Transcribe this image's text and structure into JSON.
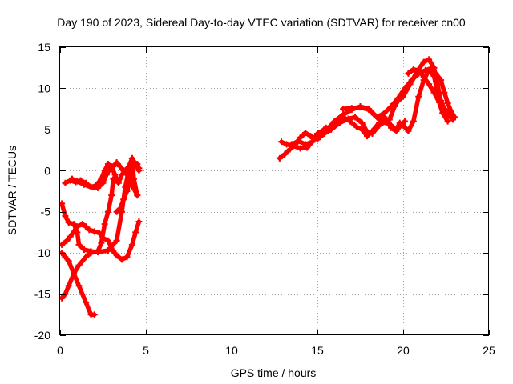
{
  "chart_data": {
    "type": "scatter",
    "title": "Day 190 of 2023, Sidereal Day-to-day VTEC variation (SDTVAR) for receiver cn00",
    "xlabel": "GPS time / hours",
    "ylabel": "SDTVAR / TECUs",
    "xlim": [
      0,
      25
    ],
    "ylim": [
      -20,
      15
    ],
    "xticks": [
      "0",
      "5",
      "10",
      "15",
      "20",
      "25"
    ],
    "yticks": [
      "-20",
      "-15",
      "-10",
      "-5",
      "0",
      "5",
      "10",
      "15"
    ],
    "grid": true,
    "color": "#ff0000",
    "series": [
      {
        "name": "satellite-trace-1",
        "points": [
          [
            0.1,
            -4
          ],
          [
            0.3,
            -5.5
          ],
          [
            0.5,
            -6.3
          ],
          [
            0.8,
            -6.5
          ],
          [
            1.0,
            -7.5
          ],
          [
            1.1,
            -9
          ],
          [
            1.4,
            -9.6
          ],
          [
            1.8,
            -9.8
          ],
          [
            2.2,
            -9.9
          ],
          [
            2.8,
            -9.7
          ],
          [
            3.3,
            -8.5
          ],
          [
            3.6,
            -5
          ],
          [
            3.8,
            -2
          ],
          [
            4.0,
            0
          ],
          [
            4.2,
            1.5
          ],
          [
            4.3,
            -1
          ],
          [
            4.5,
            -3
          ]
        ]
      },
      {
        "name": "satellite-trace-2",
        "points": [
          [
            0.1,
            -10
          ],
          [
            0.3,
            -10.5
          ],
          [
            0.5,
            -11
          ],
          [
            0.8,
            -12.5
          ],
          [
            1.1,
            -14
          ],
          [
            1.5,
            -16
          ],
          [
            1.8,
            -17.5
          ],
          [
            2.0,
            -17.5
          ]
        ]
      },
      {
        "name": "satellite-trace-3",
        "points": [
          [
            0.1,
            -15.5
          ],
          [
            0.3,
            -15
          ],
          [
            0.5,
            -14
          ],
          [
            0.8,
            -12.5
          ],
          [
            1.1,
            -11.5
          ],
          [
            1.5,
            -10.5
          ],
          [
            1.8,
            -10
          ],
          [
            2.2,
            -9.8
          ],
          [
            2.4,
            -8.8
          ],
          [
            2.6,
            -6.5
          ],
          [
            2.8,
            -5
          ],
          [
            3.0,
            -3
          ],
          [
            3.1,
            -1
          ]
        ]
      },
      {
        "name": "satellite-trace-4",
        "points": [
          [
            0.1,
            -9
          ],
          [
            0.4,
            -8.5
          ],
          [
            0.6,
            -8
          ],
          [
            1.0,
            -6.8
          ],
          [
            1.3,
            -6.5
          ],
          [
            1.5,
            -6.8
          ],
          [
            1.7,
            -7.2
          ],
          [
            2.0,
            -7.4
          ],
          [
            2.3,
            -7.6
          ],
          [
            2.5,
            -8.2
          ],
          [
            2.8,
            -8.5
          ],
          [
            3.1,
            -9.8
          ],
          [
            3.3,
            -10.3
          ],
          [
            3.6,
            -10.8
          ],
          [
            3.9,
            -10.5
          ],
          [
            4.2,
            -9
          ],
          [
            4.4,
            -7.5
          ],
          [
            4.6,
            -6.2
          ]
        ]
      },
      {
        "name": "satellite-trace-5",
        "points": [
          [
            0.3,
            -1.5
          ],
          [
            0.6,
            -1.2
          ],
          [
            0.9,
            -1.4
          ],
          [
            1.2,
            -1.2
          ],
          [
            1.5,
            -1.5
          ],
          [
            1.8,
            -2
          ],
          [
            2.1,
            -1.8
          ],
          [
            2.4,
            -1
          ],
          [
            2.6,
            0
          ],
          [
            2.8,
            0.8
          ],
          [
            3.0,
            0.5
          ],
          [
            3.2,
            -0.5
          ],
          [
            3.4,
            -1.5
          ],
          [
            3.6,
            -0.5
          ],
          [
            3.8,
            0
          ],
          [
            4.0,
            0.5
          ],
          [
            4.2,
            1.5
          ],
          [
            4.4,
            0.8
          ],
          [
            4.6,
            0
          ]
        ]
      },
      {
        "name": "satellite-trace-6",
        "points": [
          [
            0.7,
            -1
          ],
          [
            1.0,
            -1.3
          ],
          [
            1.4,
            -1.7
          ],
          [
            1.8,
            -2
          ],
          [
            2.2,
            -2.1
          ],
          [
            2.5,
            -1.5
          ],
          [
            2.7,
            -0.5
          ],
          [
            2.9,
            0.2
          ],
          [
            3.1,
            0.5
          ],
          [
            3.3,
            1
          ],
          [
            3.5,
            0.5
          ],
          [
            3.7,
            0
          ],
          [
            3.9,
            -0.5
          ],
          [
            4.1,
            -1.5
          ],
          [
            4.3,
            -2.2
          ],
          [
            4.5,
            -3
          ]
        ]
      },
      {
        "name": "satellite-trace-7",
        "points": [
          [
            3.3,
            -5
          ],
          [
            3.5,
            -4.6
          ],
          [
            3.7,
            -3.5
          ],
          [
            3.9,
            -2.5
          ],
          [
            4.1,
            -1
          ],
          [
            4.3,
            0.5
          ],
          [
            4.5,
            0.8
          ],
          [
            4.6,
            0.3
          ]
        ]
      },
      {
        "name": "satellite-trace-8",
        "points": [
          [
            12.9,
            3.5
          ],
          [
            13.2,
            3.2
          ],
          [
            13.6,
            3
          ],
          [
            14.0,
            2.7
          ],
          [
            14.4,
            2.8
          ],
          [
            14.7,
            3.5
          ],
          [
            15.0,
            4.5
          ],
          [
            15.4,
            5
          ],
          [
            15.7,
            5.3
          ],
          [
            16.0,
            6
          ],
          [
            16.5,
            6.8
          ],
          [
            17.0,
            7.4
          ],
          [
            17.5,
            7.8
          ],
          [
            18.0,
            7.5
          ],
          [
            18.3,
            6.8
          ],
          [
            18.7,
            6
          ],
          [
            19.0,
            5.8
          ],
          [
            19.2,
            6.2
          ],
          [
            19.5,
            7.8
          ],
          [
            19.7,
            8.5
          ],
          [
            20.0,
            9
          ],
          [
            20.4,
            10.5
          ],
          [
            20.8,
            12
          ],
          [
            21.2,
            13.2
          ],
          [
            21.5,
            13.5
          ],
          [
            21.8,
            12.5
          ],
          [
            22.0,
            10.5
          ],
          [
            22.2,
            8.5
          ],
          [
            22.4,
            7.5
          ],
          [
            22.7,
            7
          ],
          [
            22.9,
            6.5
          ]
        ]
      },
      {
        "name": "satellite-trace-9",
        "points": [
          [
            12.8,
            1.5
          ],
          [
            13.1,
            2
          ],
          [
            13.4,
            2.6
          ],
          [
            13.7,
            3.2
          ],
          [
            14.0,
            4
          ],
          [
            14.3,
            4.6
          ],
          [
            14.6,
            4.2
          ],
          [
            15.0,
            3.8
          ],
          [
            15.4,
            4.5
          ],
          [
            15.8,
            5
          ],
          [
            16.3,
            5.8
          ],
          [
            16.8,
            6.3
          ],
          [
            17.2,
            6.5
          ],
          [
            17.6,
            5.8
          ],
          [
            17.9,
            4.7
          ],
          [
            18.2,
            4.5
          ],
          [
            18.6,
            5.5
          ],
          [
            19.0,
            6
          ],
          [
            19.3,
            5.5
          ],
          [
            19.6,
            5
          ],
          [
            19.8,
            5.8
          ],
          [
            20.0,
            5.5
          ],
          [
            20.3,
            4.8
          ],
          [
            20.6,
            6
          ],
          [
            20.9,
            9
          ],
          [
            21.2,
            11
          ],
          [
            21.5,
            12.2
          ],
          [
            21.8,
            11.5
          ],
          [
            22.0,
            9.5
          ],
          [
            22.3,
            7.8
          ],
          [
            22.6,
            6.8
          ],
          [
            22.9,
            6.2
          ]
        ]
      },
      {
        "name": "satellite-trace-10",
        "points": [
          [
            13.5,
            3.2
          ],
          [
            13.9,
            3.6
          ],
          [
            14.3,
            3.2
          ],
          [
            14.7,
            3.5
          ],
          [
            15.1,
            4.5
          ],
          [
            15.5,
            5.2
          ],
          [
            16.0,
            5.4
          ],
          [
            16.5,
            6.5
          ],
          [
            16.9,
            6
          ],
          [
            17.3,
            5.3
          ],
          [
            17.6,
            5
          ],
          [
            17.9,
            4.2
          ],
          [
            18.2,
            4.8
          ],
          [
            18.6,
            5.8
          ],
          [
            18.9,
            6.5
          ],
          [
            19.3,
            5.2
          ],
          [
            19.6,
            4.8
          ],
          [
            19.9,
            5.6
          ],
          [
            20.1,
            6
          ]
        ]
      },
      {
        "name": "satellite-trace-11",
        "points": [
          [
            16.5,
            7.5
          ],
          [
            17.0,
            7.6
          ],
          [
            17.5,
            7.7
          ],
          [
            18.0,
            7.4
          ],
          [
            18.5,
            6.5
          ],
          [
            18.9,
            7
          ],
          [
            19.3,
            7.8
          ],
          [
            19.7,
            8.8
          ],
          [
            20.1,
            10
          ],
          [
            20.5,
            11
          ],
          [
            20.9,
            11.8
          ],
          [
            21.3,
            12.2
          ],
          [
            21.6,
            12.4
          ],
          [
            21.9,
            11.8
          ],
          [
            22.2,
            11
          ],
          [
            22.4,
            9.5
          ],
          [
            22.6,
            8.2
          ],
          [
            22.8,
            7.2
          ],
          [
            23.0,
            6.5
          ]
        ]
      },
      {
        "name": "satellite-trace-12",
        "points": [
          [
            20.3,
            11.8
          ],
          [
            20.6,
            12.3
          ],
          [
            20.9,
            12.2
          ],
          [
            21.2,
            11.4
          ],
          [
            21.5,
            10.5
          ],
          [
            21.8,
            9.5
          ],
          [
            22.1,
            8.3
          ],
          [
            22.3,
            7
          ],
          [
            22.6,
            6
          ]
        ]
      }
    ]
  }
}
